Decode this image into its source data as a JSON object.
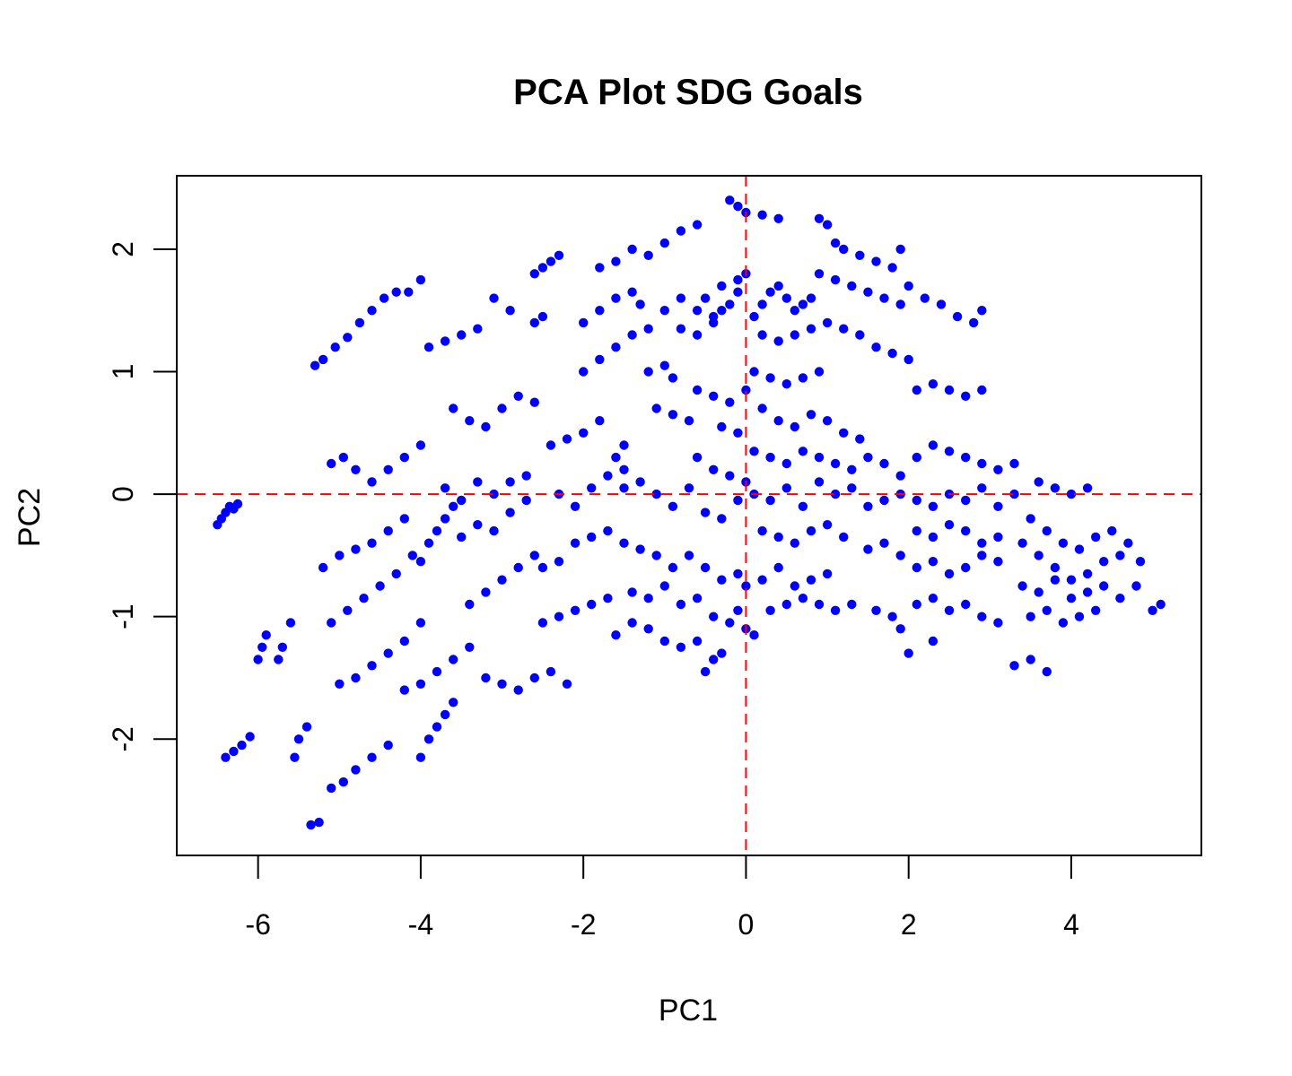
{
  "chart_data": {
    "type": "scatter",
    "title": "PCA Plot SDG Goals",
    "xlabel": "PC1",
    "ylabel": "PC2",
    "xlim": [
      -7.0,
      5.6
    ],
    "ylim": [
      -2.95,
      2.6
    ],
    "x_ticks": [
      -6,
      -4,
      -2,
      0,
      2,
      4
    ],
    "y_ticks": [
      -2,
      -1,
      0,
      1,
      2
    ],
    "x_tick_labels": [
      "-6",
      "-4",
      "-2",
      "0",
      "2",
      "4"
    ],
    "y_tick_labels": [
      "-2",
      "-1",
      "0",
      "1",
      "2"
    ],
    "reference_lines": {
      "x": 0,
      "y": 0,
      "color": "#ff0000",
      "style": "dashed"
    },
    "point_color": "#0000ff",
    "grid": false,
    "legend": "none",
    "points": [
      [
        -6.5,
        -0.25
      ],
      [
        -6.45,
        -0.2
      ],
      [
        -6.4,
        -0.15
      ],
      [
        -6.35,
        -0.1
      ],
      [
        -6.3,
        -0.12
      ],
      [
        -6.25,
        -0.08
      ],
      [
        -6.0,
        -1.35
      ],
      [
        -5.95,
        -1.25
      ],
      [
        -5.9,
        -1.15
      ],
      [
        -5.75,
        -1.35
      ],
      [
        -5.7,
        -1.25
      ],
      [
        -5.6,
        -1.05
      ],
      [
        -6.4,
        -2.15
      ],
      [
        -6.3,
        -2.1
      ],
      [
        -6.2,
        -2.05
      ],
      [
        -6.1,
        -1.98
      ],
      [
        -5.55,
        -2.15
      ],
      [
        -5.5,
        -2.0
      ],
      [
        -5.4,
        -1.9
      ],
      [
        -5.35,
        -2.7
      ],
      [
        -5.25,
        -2.68
      ],
      [
        -5.3,
        1.05
      ],
      [
        -5.2,
        1.1
      ],
      [
        -5.05,
        1.2
      ],
      [
        -4.9,
        1.28
      ],
      [
        -4.75,
        1.4
      ],
      [
        -4.6,
        1.5
      ],
      [
        -4.45,
        1.6
      ],
      [
        -4.3,
        1.65
      ],
      [
        -4.15,
        1.65
      ],
      [
        -4.0,
        1.75
      ],
      [
        -5.1,
        0.25
      ],
      [
        -4.95,
        0.3
      ],
      [
        -4.8,
        0.2
      ],
      [
        -4.6,
        0.1
      ],
      [
        -4.4,
        0.2
      ],
      [
        -4.2,
        0.3
      ],
      [
        -4.0,
        0.4
      ],
      [
        -5.2,
        -0.6
      ],
      [
        -5.0,
        -0.5
      ],
      [
        -4.8,
        -0.45
      ],
      [
        -4.6,
        -0.4
      ],
      [
        -4.4,
        -0.3
      ],
      [
        -4.2,
        -0.2
      ],
      [
        -5.1,
        -1.05
      ],
      [
        -4.9,
        -0.95
      ],
      [
        -4.7,
        -0.85
      ],
      [
        -4.5,
        -0.75
      ],
      [
        -4.3,
        -0.65
      ],
      [
        -4.1,
        -0.5
      ],
      [
        -4.0,
        -0.55
      ],
      [
        -3.9,
        -0.4
      ],
      [
        -3.8,
        -0.3
      ],
      [
        -3.7,
        -0.2
      ],
      [
        -3.6,
        -0.1
      ],
      [
        -5.0,
        -1.55
      ],
      [
        -4.8,
        -1.5
      ],
      [
        -4.6,
        -1.4
      ],
      [
        -4.4,
        -1.3
      ],
      [
        -4.2,
        -1.2
      ],
      [
        -4.0,
        -1.05
      ],
      [
        -5.1,
        -2.4
      ],
      [
        -4.95,
        -2.35
      ],
      [
        -4.8,
        -2.25
      ],
      [
        -4.6,
        -2.15
      ],
      [
        -4.4,
        -2.05
      ],
      [
        -4.0,
        -2.15
      ],
      [
        -3.9,
        -2.0
      ],
      [
        -3.8,
        -1.9
      ],
      [
        -3.7,
        -1.8
      ],
      [
        -3.6,
        -1.7
      ],
      [
        -4.2,
        -1.6
      ],
      [
        -4.0,
        -1.55
      ],
      [
        -3.8,
        -1.45
      ],
      [
        -3.6,
        -1.35
      ],
      [
        -3.4,
        -1.25
      ],
      [
        -3.2,
        -1.5
      ],
      [
        -3.0,
        -1.55
      ],
      [
        -2.8,
        -1.6
      ],
      [
        -2.6,
        -1.5
      ],
      [
        -2.4,
        -1.45
      ],
      [
        -2.2,
        -1.55
      ],
      [
        -3.6,
        0.7
      ],
      [
        -3.4,
        0.6
      ],
      [
        -3.2,
        0.55
      ],
      [
        -3.0,
        0.7
      ],
      [
        -2.8,
        0.8
      ],
      [
        -2.6,
        0.75
      ],
      [
        -3.9,
        1.2
      ],
      [
        -3.7,
        1.25
      ],
      [
        -3.5,
        1.3
      ],
      [
        -3.3,
        1.35
      ],
      [
        -3.1,
        1.6
      ],
      [
        -2.9,
        1.5
      ],
      [
        -3.7,
        0.05
      ],
      [
        -3.5,
        -0.05
      ],
      [
        -3.3,
        0.1
      ],
      [
        -3.1,
        0.0
      ],
      [
        -2.9,
        0.1
      ],
      [
        -2.7,
        0.15
      ],
      [
        -3.5,
        -0.35
      ],
      [
        -3.3,
        -0.25
      ],
      [
        -3.1,
        -0.3
      ],
      [
        -2.9,
        -0.15
      ],
      [
        -2.7,
        -0.05
      ],
      [
        -3.4,
        -0.9
      ],
      [
        -3.2,
        -0.8
      ],
      [
        -3.0,
        -0.7
      ],
      [
        -2.8,
        -0.6
      ],
      [
        -2.6,
        -0.5
      ],
      [
        -2.6,
        1.8
      ],
      [
        -2.5,
        1.85
      ],
      [
        -2.4,
        1.9
      ],
      [
        -2.3,
        1.95
      ],
      [
        -2.6,
        1.4
      ],
      [
        -2.5,
        1.45
      ],
      [
        -2.4,
        0.4
      ],
      [
        -2.2,
        0.45
      ],
      [
        -2.0,
        0.5
      ],
      [
        -1.8,
        0.6
      ],
      [
        -1.6,
        0.3
      ],
      [
        -1.5,
        0.4
      ],
      [
        -2.3,
        0.0
      ],
      [
        -2.1,
        -0.1
      ],
      [
        -1.9,
        0.05
      ],
      [
        -1.7,
        0.15
      ],
      [
        -1.5,
        0.2
      ],
      [
        -2.5,
        -0.6
      ],
      [
        -2.3,
        -0.55
      ],
      [
        -2.1,
        -0.4
      ],
      [
        -1.9,
        -0.35
      ],
      [
        -1.7,
        -0.3
      ],
      [
        -2.5,
        -1.05
      ],
      [
        -2.3,
        -1.0
      ],
      [
        -2.1,
        -0.95
      ],
      [
        -1.9,
        -0.9
      ],
      [
        -1.7,
        -0.85
      ],
      [
        -2.0,
        1.0
      ],
      [
        -1.8,
        1.1
      ],
      [
        -1.6,
        1.2
      ],
      [
        -1.4,
        1.3
      ],
      [
        -1.2,
        1.35
      ],
      [
        -1.0,
        1.5
      ],
      [
        -2.0,
        1.4
      ],
      [
        -1.8,
        1.5
      ],
      [
        -1.6,
        1.6
      ],
      [
        -1.4,
        1.65
      ],
      [
        -1.3,
        1.55
      ],
      [
        -1.8,
        1.85
      ],
      [
        -1.6,
        1.9
      ],
      [
        -1.4,
        2.0
      ],
      [
        -1.2,
        1.95
      ],
      [
        -1.0,
        2.05
      ],
      [
        -0.8,
        2.15
      ],
      [
        -0.6,
        2.2
      ],
      [
        -1.2,
        1.0
      ],
      [
        -1.0,
        1.05
      ],
      [
        -0.9,
        0.95
      ],
      [
        -1.1,
        0.7
      ],
      [
        -0.9,
        0.65
      ],
      [
        -0.7,
        0.6
      ],
      [
        -1.5,
        0.05
      ],
      [
        -1.3,
        0.1
      ],
      [
        -1.1,
        0.0
      ],
      [
        -0.9,
        -0.1
      ],
      [
        -0.7,
        0.05
      ],
      [
        -1.5,
        -0.4
      ],
      [
        -1.3,
        -0.45
      ],
      [
        -1.1,
        -0.5
      ],
      [
        -0.9,
        -0.6
      ],
      [
        -0.7,
        -0.5
      ],
      [
        -1.4,
        -0.8
      ],
      [
        -1.2,
        -0.85
      ],
      [
        -1.0,
        -0.75
      ],
      [
        -0.8,
        -0.9
      ],
      [
        -0.6,
        -0.85
      ],
      [
        -1.6,
        -1.15
      ],
      [
        -1.4,
        -1.05
      ],
      [
        -1.2,
        -1.1
      ],
      [
        -1.0,
        -1.2
      ],
      [
        -0.8,
        -1.25
      ],
      [
        -0.6,
        -1.2
      ],
      [
        -0.5,
        -1.45
      ],
      [
        -0.4,
        -1.35
      ],
      [
        -0.3,
        -1.3
      ],
      [
        -0.8,
        1.6
      ],
      [
        -0.6,
        1.5
      ],
      [
        -0.4,
        1.45
      ],
      [
        -0.2,
        1.55
      ],
      [
        -0.1,
        1.65
      ],
      [
        -0.8,
        1.35
      ],
      [
        -0.6,
        1.3
      ],
      [
        -0.4,
        1.4
      ],
      [
        -0.3,
        1.5
      ],
      [
        -0.5,
        1.6
      ],
      [
        -0.3,
        1.7
      ],
      [
        -0.1,
        1.75
      ],
      [
        0.0,
        1.8
      ],
      [
        -0.2,
        2.4
      ],
      [
        -0.1,
        2.35
      ],
      [
        0.0,
        2.3
      ],
      [
        0.2,
        2.28
      ],
      [
        0.4,
        2.25
      ],
      [
        -0.6,
        0.85
      ],
      [
        -0.4,
        0.8
      ],
      [
        -0.2,
        0.75
      ],
      [
        0.0,
        0.85
      ],
      [
        -0.3,
        0.55
      ],
      [
        -0.1,
        0.5
      ],
      [
        -0.6,
        0.3
      ],
      [
        -0.4,
        0.2
      ],
      [
        -0.2,
        0.15
      ],
      [
        0.0,
        0.1
      ],
      [
        -0.5,
        -0.15
      ],
      [
        -0.3,
        -0.2
      ],
      [
        -0.1,
        -0.05
      ],
      [
        -0.5,
        -0.6
      ],
      [
        -0.3,
        -0.7
      ],
      [
        -0.1,
        -0.65
      ],
      [
        0.0,
        -0.75
      ],
      [
        -0.4,
        -1.0
      ],
      [
        -0.2,
        -1.05
      ],
      [
        -0.1,
        -0.95
      ],
      [
        0.0,
        -1.1
      ],
      [
        0.1,
        -1.15
      ],
      [
        0.1,
        1.45
      ],
      [
        0.2,
        1.55
      ],
      [
        0.3,
        1.65
      ],
      [
        0.4,
        1.7
      ],
      [
        0.5,
        1.6
      ],
      [
        0.6,
        1.5
      ],
      [
        0.7,
        1.55
      ],
      [
        0.8,
        1.6
      ],
      [
        0.2,
        1.3
      ],
      [
        0.4,
        1.25
      ],
      [
        0.6,
        1.3
      ],
      [
        0.8,
        1.35
      ],
      [
        1.0,
        1.4
      ],
      [
        0.9,
        2.25
      ],
      [
        1.0,
        2.2
      ],
      [
        1.1,
        2.05
      ],
      [
        1.2,
        2.0
      ],
      [
        1.4,
        1.95
      ],
      [
        1.6,
        1.9
      ],
      [
        1.8,
        1.85
      ],
      [
        1.9,
        2.0
      ],
      [
        0.9,
        1.8
      ],
      [
        1.1,
        1.75
      ],
      [
        1.3,
        1.7
      ],
      [
        1.5,
        1.65
      ],
      [
        1.7,
        1.6
      ],
      [
        1.9,
        1.55
      ],
      [
        1.2,
        1.35
      ],
      [
        1.4,
        1.3
      ],
      [
        1.6,
        1.2
      ],
      [
        1.8,
        1.15
      ],
      [
        2.0,
        1.1
      ],
      [
        2.0,
        1.7
      ],
      [
        2.2,
        1.6
      ],
      [
        2.4,
        1.55
      ],
      [
        2.6,
        1.45
      ],
      [
        2.8,
        1.4
      ],
      [
        2.9,
        1.5
      ],
      [
        2.1,
        0.85
      ],
      [
        2.3,
        0.9
      ],
      [
        2.5,
        0.85
      ],
      [
        2.7,
        0.8
      ],
      [
        2.9,
        0.85
      ],
      [
        0.1,
        1.0
      ],
      [
        0.3,
        0.95
      ],
      [
        0.5,
        0.9
      ],
      [
        0.7,
        0.95
      ],
      [
        0.9,
        1.0
      ],
      [
        0.2,
        0.7
      ],
      [
        0.4,
        0.6
      ],
      [
        0.6,
        0.55
      ],
      [
        0.8,
        0.65
      ],
      [
        1.0,
        0.6
      ],
      [
        1.2,
        0.5
      ],
      [
        1.4,
        0.45
      ],
      [
        0.1,
        0.35
      ],
      [
        0.3,
        0.3
      ],
      [
        0.5,
        0.25
      ],
      [
        0.7,
        0.35
      ],
      [
        0.9,
        0.3
      ],
      [
        1.1,
        0.25
      ],
      [
        1.3,
        0.2
      ],
      [
        0.1,
        0.0
      ],
      [
        0.3,
        -0.05
      ],
      [
        0.5,
        0.05
      ],
      [
        0.7,
        -0.1
      ],
      [
        0.9,
        0.1
      ],
      [
        1.1,
        0.0
      ],
      [
        1.3,
        0.05
      ],
      [
        0.2,
        -0.3
      ],
      [
        0.4,
        -0.35
      ],
      [
        0.6,
        -0.4
      ],
      [
        0.8,
        -0.3
      ],
      [
        1.0,
        -0.25
      ],
      [
        1.2,
        -0.35
      ],
      [
        0.2,
        -0.7
      ],
      [
        0.4,
        -0.6
      ],
      [
        0.6,
        -0.75
      ],
      [
        0.8,
        -0.7
      ],
      [
        1.0,
        -0.65
      ],
      [
        0.3,
        -0.95
      ],
      [
        0.5,
        -0.9
      ],
      [
        0.7,
        -0.85
      ],
      [
        0.9,
        -0.9
      ],
      [
        1.1,
        -0.95
      ],
      [
        1.3,
        -0.9
      ],
      [
        1.5,
        0.3
      ],
      [
        1.7,
        0.25
      ],
      [
        1.9,
        0.15
      ],
      [
        1.5,
        -0.1
      ],
      [
        1.7,
        -0.05
      ],
      [
        1.9,
        0.0
      ],
      [
        1.5,
        -0.45
      ],
      [
        1.7,
        -0.4
      ],
      [
        1.9,
        -0.5
      ],
      [
        1.6,
        -0.95
      ],
      [
        1.8,
        -1.0
      ],
      [
        1.9,
        -1.1
      ],
      [
        2.1,
        0.3
      ],
      [
        2.3,
        0.4
      ],
      [
        2.5,
        0.35
      ],
      [
        2.7,
        0.3
      ],
      [
        2.9,
        0.25
      ],
      [
        3.1,
        0.2
      ],
      [
        3.3,
        0.25
      ],
      [
        2.1,
        -0.05
      ],
      [
        2.3,
        -0.1
      ],
      [
        2.5,
        0.0
      ],
      [
        2.7,
        -0.05
      ],
      [
        2.9,
        0.05
      ],
      [
        3.1,
        -0.1
      ],
      [
        3.3,
        0.0
      ],
      [
        2.1,
        -0.3
      ],
      [
        2.3,
        -0.35
      ],
      [
        2.5,
        -0.25
      ],
      [
        2.7,
        -0.3
      ],
      [
        2.9,
        -0.4
      ],
      [
        3.1,
        -0.35
      ],
      [
        2.1,
        -0.6
      ],
      [
        2.3,
        -0.55
      ],
      [
        2.5,
        -0.65
      ],
      [
        2.7,
        -0.6
      ],
      [
        2.9,
        -0.5
      ],
      [
        3.1,
        -0.55
      ],
      [
        2.1,
        -0.9
      ],
      [
        2.3,
        -0.85
      ],
      [
        2.5,
        -0.95
      ],
      [
        2.7,
        -0.9
      ],
      [
        2.9,
        -1.0
      ],
      [
        3.1,
        -1.05
      ],
      [
        2.0,
        -1.3
      ],
      [
        2.3,
        -1.2
      ],
      [
        3.4,
        -0.4
      ],
      [
        3.6,
        -0.5
      ],
      [
        3.8,
        -0.6
      ],
      [
        4.0,
        -0.7
      ],
      [
        4.2,
        -0.65
      ],
      [
        4.4,
        -0.55
      ],
      [
        4.6,
        -0.5
      ],
      [
        3.4,
        -0.75
      ],
      [
        3.6,
        -0.8
      ],
      [
        3.8,
        -0.7
      ],
      [
        4.0,
        -0.85
      ],
      [
        4.2,
        -0.8
      ],
      [
        4.4,
        -0.75
      ],
      [
        3.5,
        -1.0
      ],
      [
        3.7,
        -0.95
      ],
      [
        3.9,
        -1.05
      ],
      [
        4.1,
        -1.0
      ],
      [
        4.3,
        -0.95
      ],
      [
        3.3,
        -1.4
      ],
      [
        3.5,
        -1.35
      ],
      [
        3.7,
        -1.45
      ],
      [
        3.5,
        -0.2
      ],
      [
        3.7,
        -0.3
      ],
      [
        3.9,
        -0.4
      ],
      [
        4.1,
        -0.45
      ],
      [
        4.3,
        -0.35
      ],
      [
        4.5,
        -0.3
      ],
      [
        3.6,
        0.1
      ],
      [
        3.8,
        0.05
      ],
      [
        4.0,
        0.0
      ],
      [
        4.2,
        0.05
      ],
      [
        4.6,
        -0.85
      ],
      [
        4.8,
        -0.75
      ],
      [
        5.0,
        -0.95
      ],
      [
        5.1,
        -0.9
      ],
      [
        4.7,
        -0.4
      ],
      [
        4.85,
        -0.55
      ]
    ]
  }
}
